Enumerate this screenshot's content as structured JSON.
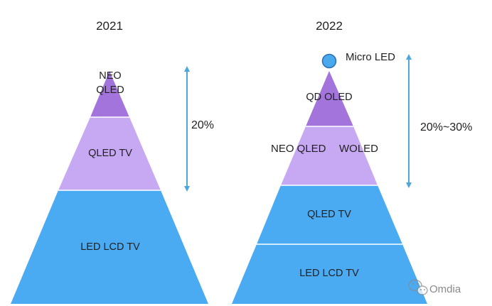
{
  "colors": {
    "purple_dark": "#a274dc",
    "purple_light": "#c7a8f3",
    "blue": "#4aaaf2",
    "arrow": "#4ea7dc",
    "micro_dot": "#4aa8ec",
    "micro_dot_stroke": "#2a6fb5"
  },
  "diagram_2021": {
    "year": "2021",
    "tiers": {
      "top_line1": "NEO",
      "top_line2": "QLED",
      "middle": "QLED TV",
      "bottom": "LED LCD TV"
    },
    "share_label": "20%"
  },
  "diagram_2022": {
    "year": "2022",
    "micro_label": "Micro LED",
    "tiers": {
      "top": "QD OLED",
      "middle_left": "NEO QLED",
      "middle_right": "WOLED",
      "lower_middle": "QLED TV",
      "bottom": "LED LCD TV"
    },
    "share_label": "20%~30%"
  },
  "watermark": {
    "text": "Omdia",
    "icon": "wechat-icon"
  }
}
